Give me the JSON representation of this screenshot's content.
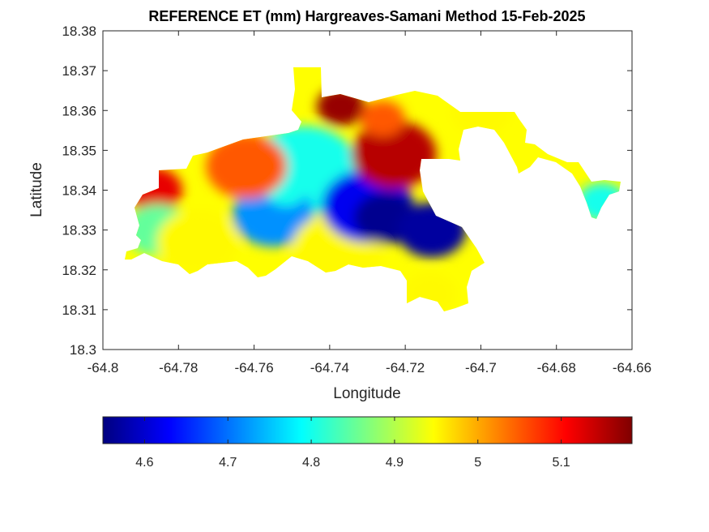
{
  "chart_data": {
    "type": "heatmap",
    "title": "REFERENCE ET (mm) Hargreaves-Samani Method  15-Feb-2025",
    "xlabel": "Longitude",
    "ylabel": "Latitude",
    "xlim": [
      -64.8,
      -64.66
    ],
    "ylim": [
      18.3,
      18.38
    ],
    "x_ticks": [
      "-64.8",
      "-64.78",
      "-64.76",
      "-64.74",
      "-64.72",
      "-64.7",
      "-64.68",
      "-64.66"
    ],
    "y_ticks": [
      "18.3",
      "18.31",
      "18.32",
      "18.33",
      "18.34",
      "18.35",
      "18.36",
      "18.37",
      "18.38"
    ],
    "colorbar": {
      "colormap": "jet",
      "range": [
        4.55,
        5.185
      ],
      "ticks": [
        "4.6",
        "4.7",
        "4.8",
        "4.9",
        "5",
        "5.1"
      ],
      "colors": [
        "#00007f",
        "#0000ff",
        "#007fff",
        "#00ffff",
        "#7fff7f",
        "#ffff00",
        "#ff7f00",
        "#ff0000",
        "#7f0000"
      ]
    },
    "field_regions": [
      {
        "lon": -64.747,
        "lat": 18.345,
        "value": 4.8
      },
      {
        "lon": -64.7865,
        "lat": 18.34,
        "value": 5.12
      },
      {
        "lon": -64.7855,
        "lat": 18.33,
        "value": 4.85
      },
      {
        "lon": -64.775,
        "lat": 18.327,
        "value": 4.95
      },
      {
        "lon": -64.755,
        "lat": 18.334,
        "value": 4.72
      },
      {
        "lon": -64.7515,
        "lat": 18.34,
        "value": 4.8
      },
      {
        "lon": -64.738,
        "lat": 18.325,
        "value": 4.95
      },
      {
        "lon": -64.73,
        "lat": 18.336,
        "value": 4.62
      },
      {
        "lon": -64.725,
        "lat": 18.333,
        "value": 4.56
      },
      {
        "lon": -64.713,
        "lat": 18.33,
        "value": 4.57
      },
      {
        "lon": -64.723,
        "lat": 18.349,
        "value": 5.15
      },
      {
        "lon": -64.737,
        "lat": 18.361,
        "value": 5.17
      },
      {
        "lon": -64.726,
        "lat": 18.358,
        "value": 5.05
      },
      {
        "lon": -64.762,
        "lat": 18.346,
        "value": 5.05
      },
      {
        "lon": -64.7135,
        "lat": 18.314,
        "value": 4.95
      },
      {
        "lon": -64.7,
        "lat": 18.36,
        "value": 4.95
      },
      {
        "lon": -64.668,
        "lat": 18.337,
        "value": 4.8
      }
    ]
  }
}
